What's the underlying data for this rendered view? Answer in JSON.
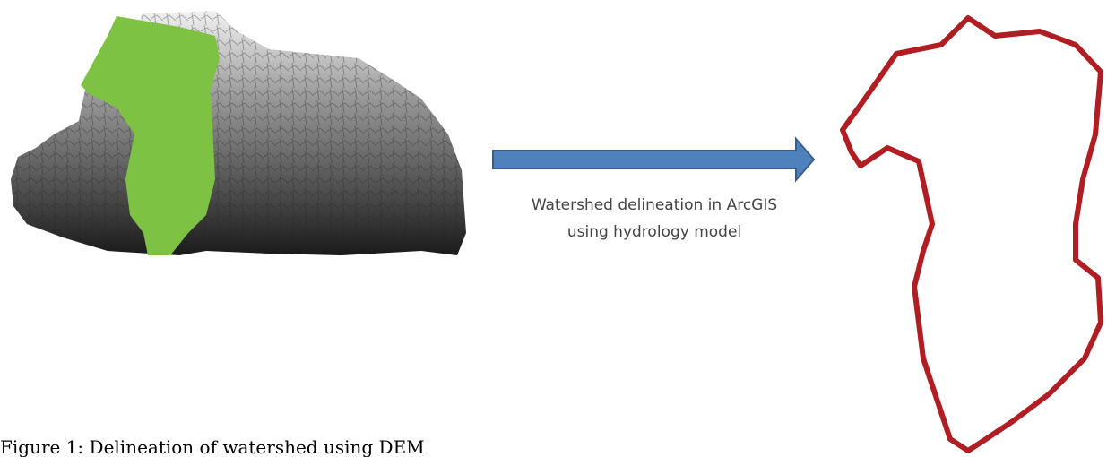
{
  "arrow_label": [
    "Watershed delineation in ArcGIS",
    "using hydrology model"
  ],
  "caption": "Figure 1: Delineation of watershed using DEM"
}
